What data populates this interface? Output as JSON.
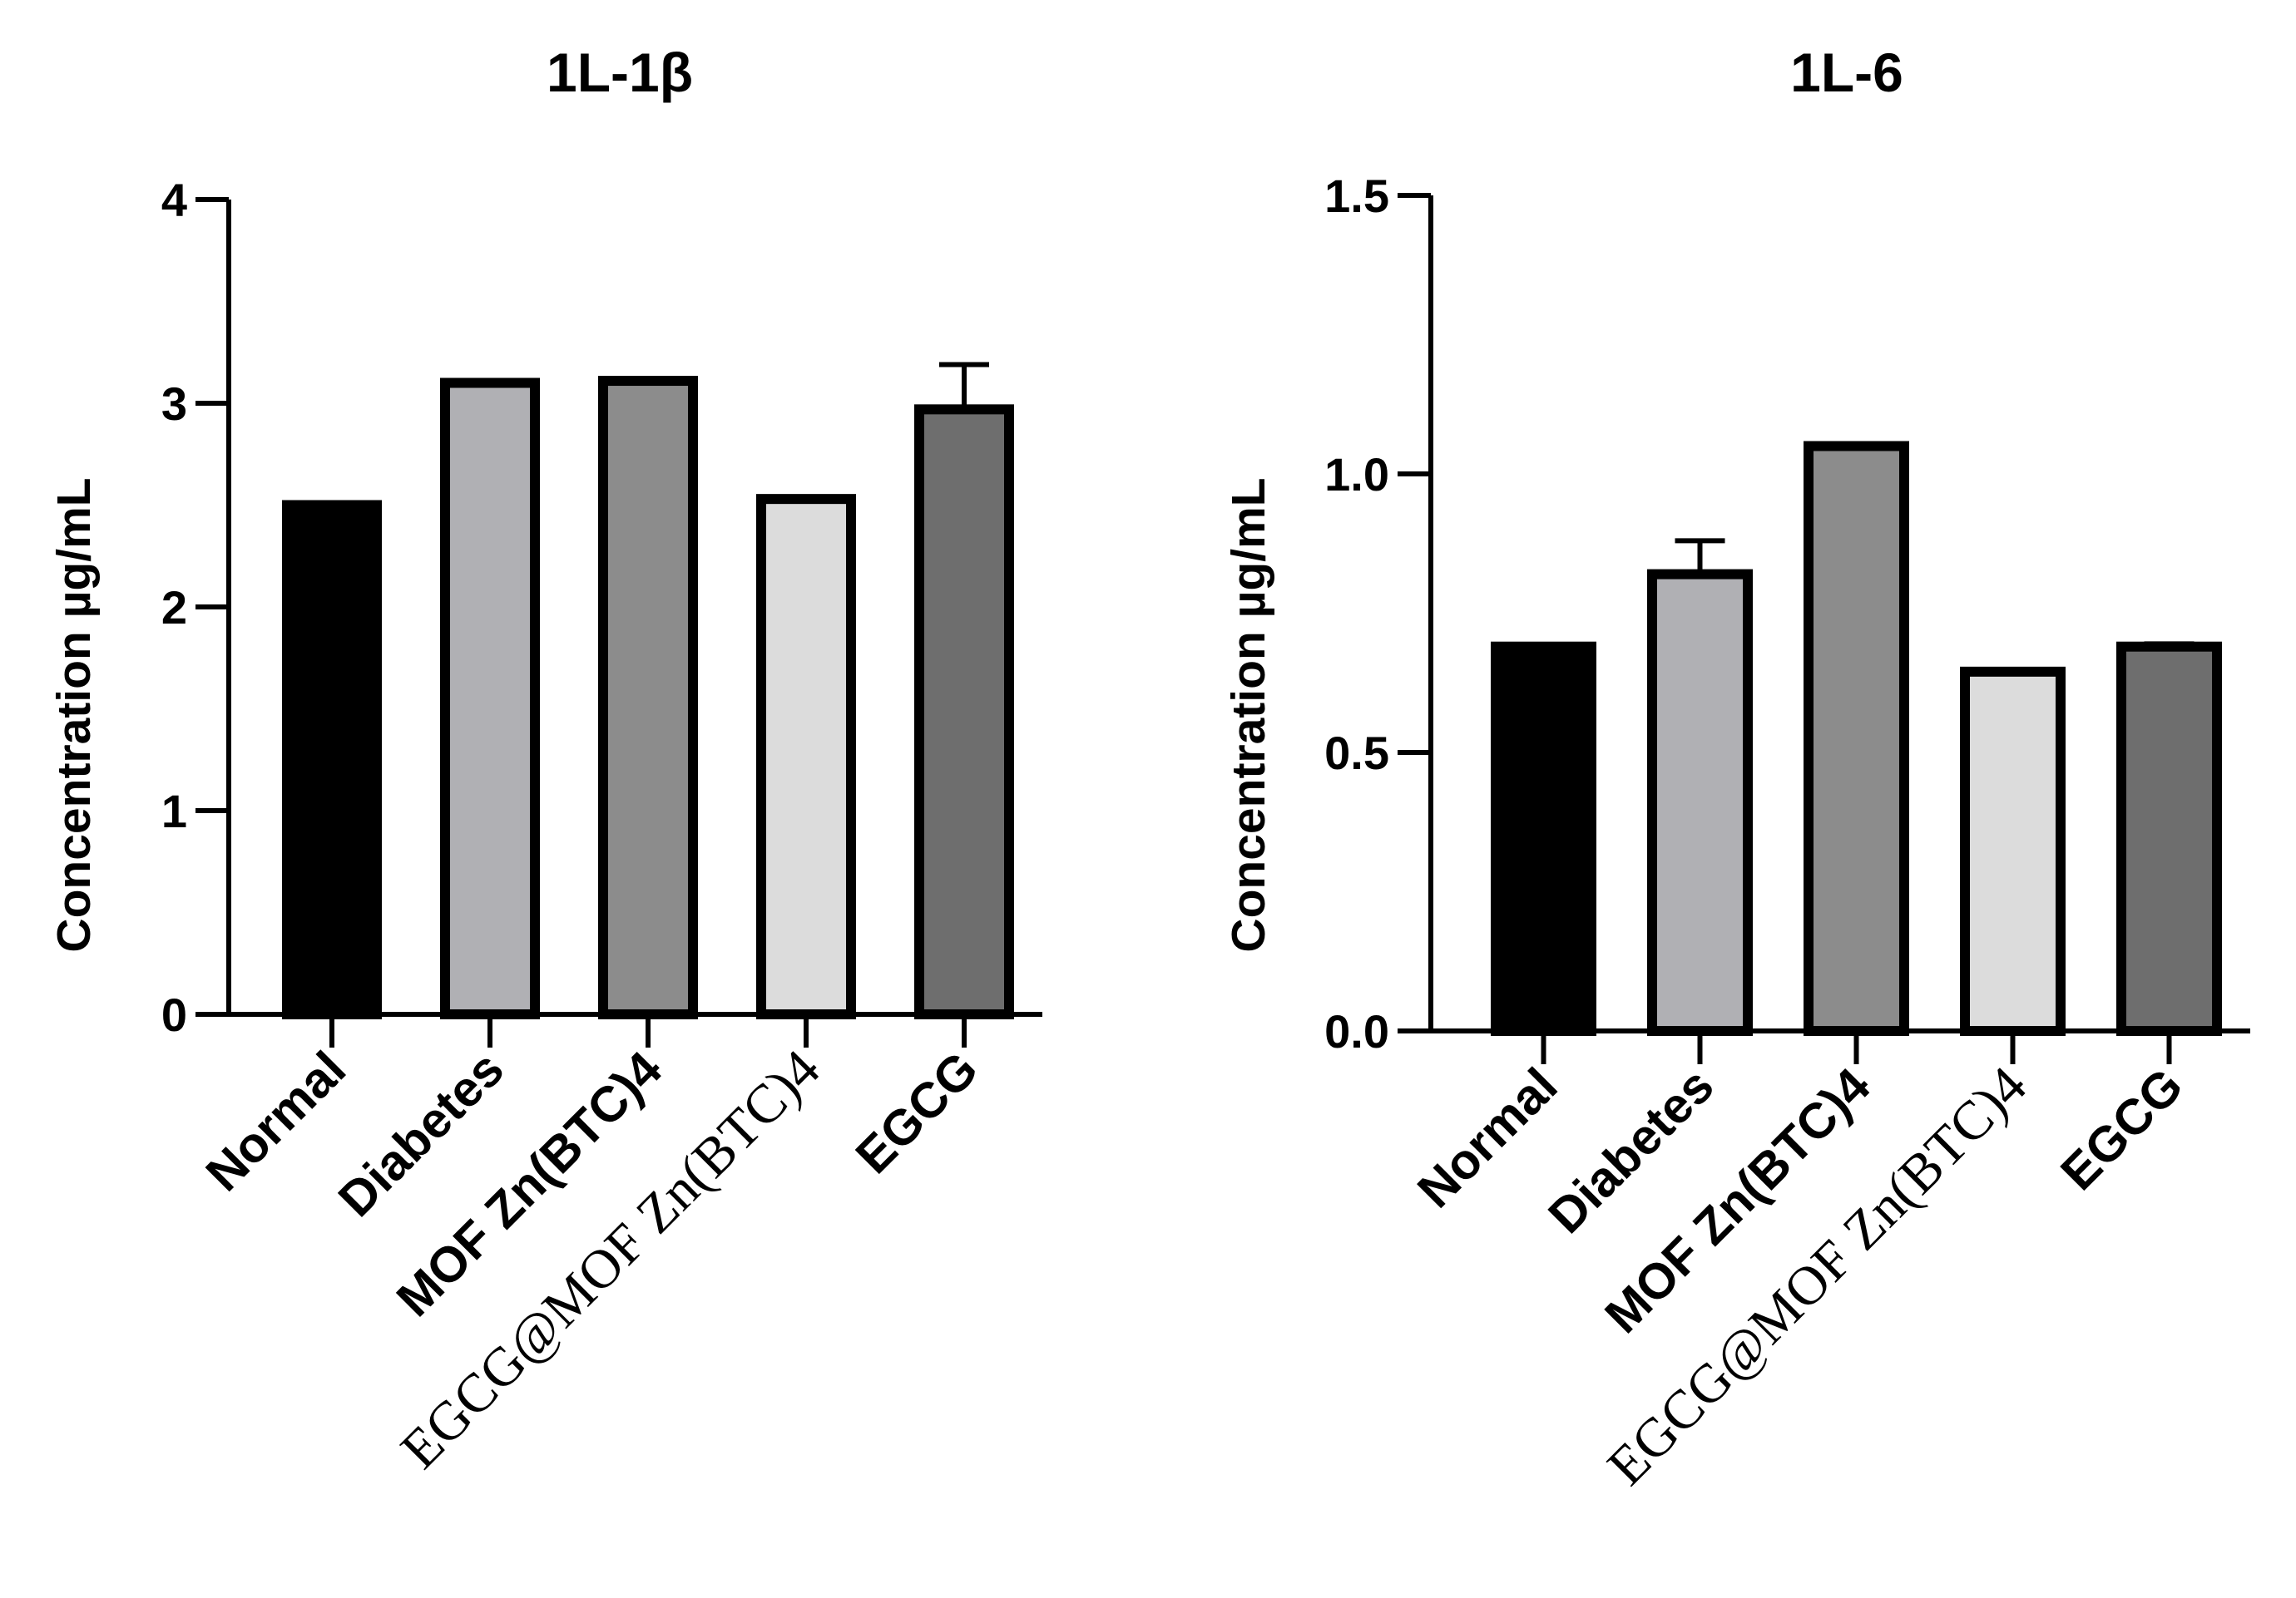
{
  "chart_data": [
    {
      "type": "bar",
      "title": "1L-1β",
      "ylabel": "Concentration µg/mL",
      "xlabel": "",
      "ylim": [
        0,
        4
      ],
      "yticks": [
        0,
        1,
        2,
        3,
        4
      ],
      "ytick_labels": [
        "0",
        "1",
        "2",
        "3",
        "4"
      ],
      "categories": [
        "Normal",
        "Diabetes",
        "MOF Zn(BTC)4",
        "EGCG@MOF Zn(BTC)4",
        "EGCG"
      ],
      "values": [
        2.5,
        3.1,
        3.11,
        2.53,
        2.97
      ],
      "errors": [
        0.01,
        0.01,
        0.01,
        0.01,
        0.22
      ],
      "colors": [
        "#000000",
        "#b0b0b4",
        "#8c8c8c",
        "#dcdcdc",
        "#6e6e6e"
      ],
      "grid": false,
      "legend": "none"
    },
    {
      "type": "bar",
      "title": "1L-6",
      "ylabel": "Concentration µg/mL",
      "xlabel": "",
      "ylim": [
        0,
        1.5
      ],
      "yticks": [
        0,
        0.5,
        1,
        1.5
      ],
      "ytick_labels": [
        "0.0",
        "0.5",
        "1.0",
        "1.5"
      ],
      "categories": [
        "Normal",
        "Diabetes",
        "MOF Zn(BTC)4",
        "EGCG@MOF Zn(BTC)4",
        "EGCG"
      ],
      "values": [
        0.69,
        0.82,
        1.05,
        0.645,
        0.69
      ],
      "errors": [
        0.0,
        0.06,
        0.003,
        0.0,
        0.005
      ],
      "colors": [
        "#000000",
        "#b0b0b4",
        "#8c8c8c",
        "#dcdcdc",
        "#6e6e6e"
      ],
      "grid": false,
      "legend": "none"
    }
  ]
}
